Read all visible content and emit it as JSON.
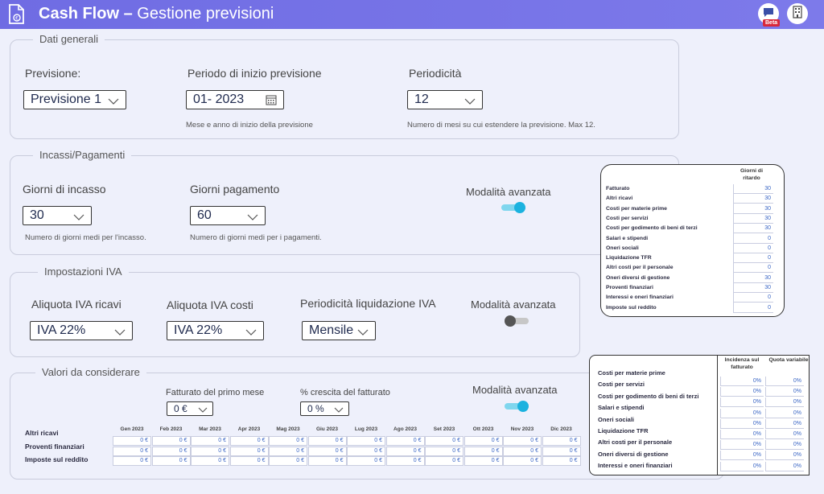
{
  "header": {
    "title_bold": "Cash Flow –",
    "title_rest": " Gestione previsioni",
    "beta": "Beta"
  },
  "dati": {
    "legend": "Dati generali",
    "previsione_label": "Previsione:",
    "previsione_value": "Previsione 1",
    "periodo_label": "Periodo di inizio previsione",
    "periodo_value": "01- 2023",
    "periodo_hint": "Mese e anno di inizio della previsione",
    "periodicita_label": "Periodicità",
    "periodicita_value": "12",
    "periodicita_hint": "Numero di mesi su cui estendere la previsione. Max 12."
  },
  "incassi": {
    "legend": "Incassi/Pagamenti",
    "giorni_incasso_label": "Giorni di incasso",
    "giorni_incasso_value": "30",
    "giorni_incasso_hint": "Numero di giorni medi per l'incasso.",
    "giorni_pagamento_label": "Giorni pagamento",
    "giorni_pagamento_value": "60",
    "giorni_pagamento_hint": "Numero di giorni medi per i pagamenti.",
    "modalita_label": "Modalità avanzata",
    "modalita_on": true
  },
  "ritardo_table": {
    "header": "Giorni di ritardo",
    "rows": [
      {
        "label": "Fatturato",
        "value": "30"
      },
      {
        "label": "Altri ricavi",
        "value": "30"
      },
      {
        "label": "Costi per materie prime",
        "value": "30"
      },
      {
        "label": "Costi per servizi",
        "value": "30"
      },
      {
        "label": "Costi per godimento di beni di terzi",
        "value": "30"
      },
      {
        "label": "Salari e stipendi",
        "value": "0"
      },
      {
        "label": "Oneri sociali",
        "value": "0"
      },
      {
        "label": "Liquidazione TFR",
        "value": "0"
      },
      {
        "label": "Altri costi per il personale",
        "value": "0"
      },
      {
        "label": "Oneri diversi di gestione",
        "value": "30"
      },
      {
        "label": "Proventi finanziari",
        "value": "30"
      },
      {
        "label": "Interessi e oneri finanziari",
        "value": "0"
      },
      {
        "label": "Imposte sul reddito",
        "value": "0"
      }
    ]
  },
  "iva": {
    "legend": "Impostazioni IVA",
    "ricavi_label": "Aliquota IVA ricavi",
    "ricavi_value": "IVA 22%",
    "costi_label": "Aliquota IVA costi",
    "costi_value": "IVA 22%",
    "periodicita_label": "Periodicità liquidazione IVA",
    "periodicita_value": "Mensile",
    "modalita_label": "Modalità avanzata",
    "modalita_on": false
  },
  "valori": {
    "legend": "Valori da considerare",
    "fatturato_label": "Fatturato del primo mese",
    "fatturato_value": "0 €",
    "crescita_label": "% crescita del fatturato",
    "crescita_value": "0 %",
    "modalita_label": "Modalità avanzata",
    "modalita_on": true,
    "months": [
      "Gen 2023",
      "Feb 2023",
      "Mar 2023",
      "Apr 2023",
      "Mag 2023",
      "Giu 2023",
      "Lug 2023",
      "Ago 2023",
      "Set 2023",
      "Ott 2023",
      "Nov 2023",
      "Dic 2023"
    ],
    "rows": [
      {
        "label": "Altri ricavi",
        "values": [
          "0 €",
          "0 €",
          "0 €",
          "0 €",
          "0 €",
          "0 €",
          "0 €",
          "0 €",
          "0 €",
          "0 €",
          "0 €",
          "0 €"
        ]
      },
      {
        "label": "Proventi finanziari",
        "values": [
          "0 €",
          "0 €",
          "0 €",
          "0 €",
          "0 €",
          "0 €",
          "0 €",
          "0 €",
          "0 €",
          "0 €",
          "0 €",
          "0 €"
        ]
      },
      {
        "label": "Imposte sul reddito",
        "values": [
          "0 €",
          "0 €",
          "0 €",
          "0 €",
          "0 €",
          "0 €",
          "0 €",
          "0 €",
          "0 €",
          "0 €",
          "0 €",
          "0 €"
        ]
      }
    ]
  },
  "incidenza_table": {
    "header1": "Incidenza sul fatturato",
    "header2": "Quota variabile",
    "rows": [
      {
        "label": "Costi per materie prime",
        "a": "0%",
        "b": "0%"
      },
      {
        "label": "Costi per servizi",
        "a": "0%",
        "b": "0%"
      },
      {
        "label": "Costi per godimento di beni di terzi",
        "a": "0%",
        "b": "0%"
      },
      {
        "label": "Salari e stipendi",
        "a": "0%",
        "b": "0%"
      },
      {
        "label": "Oneri sociali",
        "a": "0%",
        "b": "0%"
      },
      {
        "label": "Liquidazione TFR",
        "a": "0%",
        "b": "0%"
      },
      {
        "label": "Altri costi per il personale",
        "a": "0%",
        "b": "0%"
      },
      {
        "label": "Oneri diversi di gestione",
        "a": "0%",
        "b": "0%"
      },
      {
        "label": "Interessi e oneri finanziari",
        "a": "0%",
        "b": "0%"
      }
    ]
  }
}
